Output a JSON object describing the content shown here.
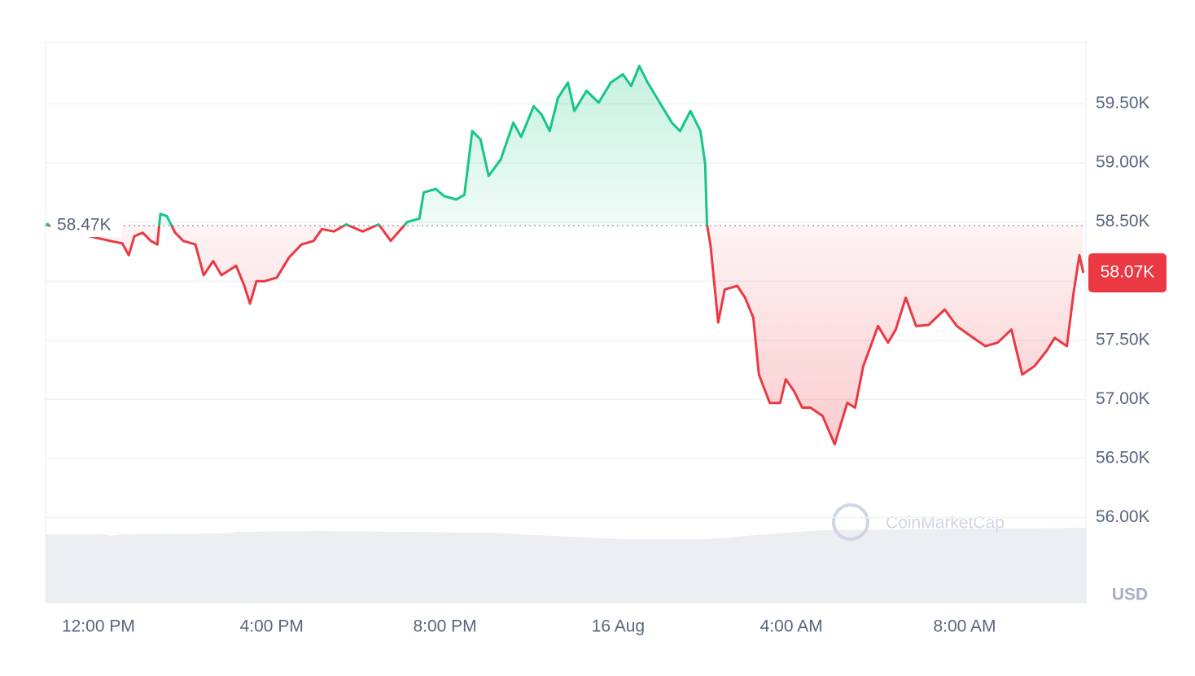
{
  "chart_data": {
    "type": "line",
    "xlim": [
      10.78,
      34.8
    ],
    "xticks": [
      {
        "value": 12,
        "label": "12:00 PM"
      },
      {
        "value": 16,
        "label": "4:00 PM"
      },
      {
        "value": 20,
        "label": "8:00 PM"
      },
      {
        "value": 24,
        "label": "16 Aug"
      },
      {
        "value": 28,
        "label": "4:00 AM"
      },
      {
        "value": 32,
        "label": "8:00 AM"
      }
    ],
    "ylim": [
      55.28,
      60.02
    ],
    "yticks": [
      {
        "value": 56,
        "label": "56.00K"
      },
      {
        "value": 56.5,
        "label": "56.50K"
      },
      {
        "value": 57,
        "label": "57.00K"
      },
      {
        "value": 57.5,
        "label": "57.50K"
      },
      {
        "value": 58,
        "label": "58.00K"
      },
      {
        "value": 58.5,
        "label": "58.50K"
      },
      {
        "value": 59,
        "label": "59.00K"
      },
      {
        "value": 59.5,
        "label": "59.50K"
      }
    ],
    "grid": true,
    "x": [
      10.78,
      11.23,
      11.8,
      12.27,
      12.55,
      12.7,
      12.83,
      13.02,
      13.21,
      13.36,
      13.43,
      13.58,
      13.77,
      13.96,
      14.24,
      14.43,
      14.65,
      14.84,
      15.18,
      15.37,
      15.5,
      15.65,
      15.84,
      16.12,
      16.4,
      16.69,
      16.97,
      17.16,
      17.44,
      17.72,
      18.1,
      18.47,
      18.75,
      19.13,
      19.41,
      19.51,
      19.79,
      19.98,
      20.26,
      20.45,
      20.63,
      20.82,
      21.01,
      21.29,
      21.58,
      21.76,
      22.05,
      22.23,
      22.42,
      22.61,
      22.84,
      22.99,
      23.27,
      23.55,
      23.83,
      24.11,
      24.3,
      24.49,
      24.68,
      24.96,
      25.24,
      25.43,
      25.67,
      25.9,
      26.01,
      26.05,
      26.13,
      26.31,
      26.46,
      26.75,
      26.93,
      27.12,
      27.25,
      27.5,
      27.74,
      27.87,
      28.06,
      28.25,
      28.44,
      28.72,
      29.0,
      29.29,
      29.47,
      29.66,
      30.0,
      30.23,
      30.41,
      30.64,
      30.88,
      31.17,
      31.54,
      31.82,
      32.2,
      32.48,
      32.76,
      33.08,
      33.33,
      33.61,
      33.89,
      34.08,
      34.36,
      34.51,
      34.65,
      34.74
    ],
    "values": [
      58.48,
      58.43,
      58.38,
      58.34,
      58.32,
      58.22,
      58.38,
      58.41,
      58.34,
      58.31,
      58.57,
      58.55,
      58.41,
      58.34,
      58.31,
      58.05,
      58.17,
      58.05,
      58.13,
      57.96,
      57.81,
      58.0,
      58.0,
      58.03,
      58.2,
      58.31,
      58.34,
      58.44,
      58.42,
      58.48,
      58.42,
      58.48,
      58.34,
      58.5,
      58.53,
      58.75,
      58.78,
      58.72,
      58.69,
      58.73,
      59.27,
      59.2,
      58.89,
      59.03,
      59.34,
      59.22,
      59.48,
      59.41,
      59.27,
      59.55,
      59.68,
      59.44,
      59.61,
      59.51,
      59.68,
      59.75,
      59.65,
      59.82,
      59.68,
      59.51,
      59.34,
      59.27,
      59.44,
      59.27,
      58.99,
      58.48,
      58.31,
      57.65,
      57.93,
      57.96,
      57.86,
      57.69,
      57.21,
      56.97,
      56.97,
      57.17,
      57.07,
      56.93,
      56.93,
      56.86,
      56.62,
      56.97,
      56.93,
      57.28,
      57.62,
      57.48,
      57.59,
      57.86,
      57.62,
      57.63,
      57.76,
      57.62,
      57.52,
      57.45,
      57.48,
      57.59,
      57.21,
      57.28,
      57.41,
      57.52,
      57.45,
      57.89,
      58.22,
      58.07
    ],
    "reference": {
      "value": 58.47,
      "label": "58.47K"
    },
    "last_price": {
      "value": 58.07,
      "label": "58.07K"
    },
    "colors": {
      "up": "#16c784",
      "down": "#ea3943"
    },
    "currency_label": "USD",
    "watermark": "CoinMarketCap"
  }
}
